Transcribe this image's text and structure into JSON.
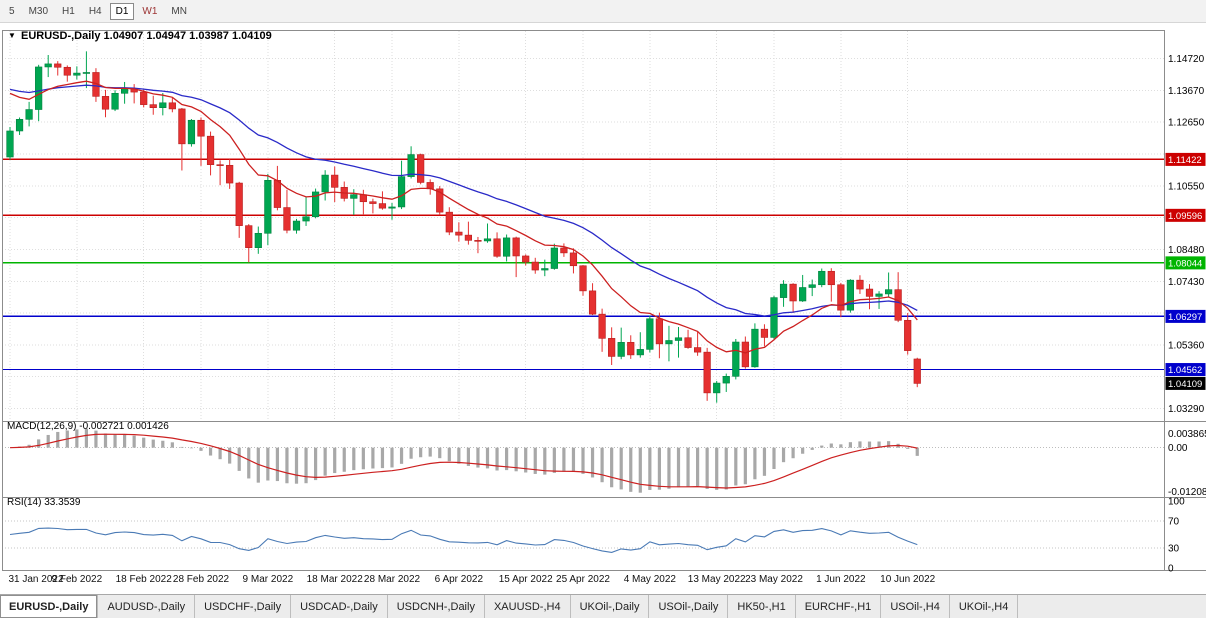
{
  "icons": {
    "chart_dropdown": "▼"
  },
  "toolbar": {
    "timeframes": [
      {
        "label": "5",
        "selected": false,
        "accent": false
      },
      {
        "label": "M30",
        "selected": false,
        "accent": false
      },
      {
        "label": "H1",
        "selected": false,
        "accent": false
      },
      {
        "label": "H4",
        "selected": false,
        "accent": false
      },
      {
        "label": "D1",
        "selected": true,
        "accent": false
      },
      {
        "label": "W1",
        "selected": false,
        "accent": true
      },
      {
        "label": "MN",
        "selected": false,
        "accent": false
      }
    ]
  },
  "chart": {
    "title_text": "EURUSD-,Daily 1.04907 1.04947 1.03987 1.04109",
    "macd_label": "MACD(12,26,9) -0.002721 0.001426",
    "rsi_label": "RSI(14) 33.3539"
  },
  "chart_data": {
    "type": "candlestick",
    "symbol": "EURUSD-",
    "timeframe": "Daily",
    "last_ohlc": {
      "open": 1.04907,
      "high": 1.04947,
      "low": 1.03987,
      "close": 1.04109
    },
    "colors": {
      "up": "#00a651",
      "up_stroke": "#00813e",
      "down": "#e53030",
      "down_stroke": "#b61d1d",
      "grid": "#dedede",
      "border": "#8c8c8c",
      "ma_fast": "#cc2020",
      "ma_slow": "#2a2ac8",
      "hline_red": "#cc0000",
      "hline_green": "#00b400",
      "hline_blue": "#0000cc",
      "tag_black": "#000000",
      "macd_hist": "#a8a8a8",
      "macd_signal": "#cc2020",
      "rsi_line": "#4a7ab5"
    },
    "y_axis_labels": [
      {
        "text": "1.14720",
        "value": 1.1472
      },
      {
        "text": "1.13670",
        "value": 1.1367
      },
      {
        "text": "1.12650",
        "value": 1.1265
      },
      {
        "text": "1.10550",
        "value": 1.1055
      },
      {
        "text": "1.08480",
        "value": 1.0848
      },
      {
        "text": "1.07430",
        "value": 1.0743
      },
      {
        "text": "1.05360",
        "value": 1.0536
      },
      {
        "text": "1.03290",
        "value": 1.0329
      }
    ],
    "y_gridlines": [
      1.1472,
      1.1367,
      1.1265,
      1.116,
      1.1055,
      1.0953,
      1.0848,
      1.0743,
      1.064,
      1.0536,
      1.0433,
      1.0329
    ],
    "x_ticks": [
      {
        "i": 0,
        "label": "31 Jan 2022"
      },
      {
        "i": 7,
        "label": "9 Feb 2022"
      },
      {
        "i": 14,
        "label": "18 Feb 2022"
      },
      {
        "i": 20,
        "label": "28 Feb 2022"
      },
      {
        "i": 27,
        "label": "9 Mar 2022"
      },
      {
        "i": 34,
        "label": "18 Mar 2022"
      },
      {
        "i": 40,
        "label": "28 Mar 2022"
      },
      {
        "i": 47,
        "label": "6 Apr 2022"
      },
      {
        "i": 54,
        "label": "15 Apr 2022"
      },
      {
        "i": 60,
        "label": "25 Apr 2022"
      },
      {
        "i": 67,
        "label": "4 May 2022"
      },
      {
        "i": 74,
        "label": "13 May 2022"
      },
      {
        "i": 80,
        "label": "23 May 2022"
      },
      {
        "i": 87,
        "label": "1 Jun 2022"
      },
      {
        "i": 94,
        "label": "10 Jun 2022"
      }
    ],
    "hlines": [
      {
        "price": 1.11422,
        "label": "1.11422",
        "color": "#cc0000"
      },
      {
        "price": 1.09596,
        "label": "1.09596",
        "color": "#cc0000"
      },
      {
        "price": 1.08044,
        "label": "1.08044",
        "color": "#00b400"
      },
      {
        "price": 1.06297,
        "label": "1.06297",
        "color": "#0000cc"
      },
      {
        "price": 1.04562,
        "label": "1.04562",
        "color": "#0000cc"
      }
    ],
    "current_price_tag": {
      "price": 1.04109,
      "label": "1.04109",
      "color": "#000000"
    },
    "ma": [
      {
        "period": 12,
        "seed": 1.138,
        "color": "#cc2020"
      },
      {
        "period": 30,
        "seed": 1.138,
        "color": "#2a2ac8"
      }
    ],
    "macd": {
      "fast": 12,
      "slow": 26,
      "signal": 9,
      "value_text": "-0.002721 0.001426",
      "axis_labels": [
        {
          "text": "0.003865",
          "value": 0.003865
        },
        {
          "text": "0.00",
          "value": 0
        },
        {
          "text": "-0.01208",
          "value": -0.01208
        }
      ],
      "range": [
        -0.013,
        0.0065
      ]
    },
    "rsi": {
      "period": 14,
      "value_text": "33.3539",
      "axis_labels": [
        {
          "text": "100",
          "value": 100
        },
        {
          "text": "70",
          "value": 70
        },
        {
          "text": "30",
          "value": 30
        },
        {
          "text": "0",
          "value": 0
        }
      ],
      "levels": [
        70,
        30
      ],
      "range": [
        0,
        100
      ]
    },
    "candles": [
      [
        1.115,
        1.1248,
        1.1141,
        1.1235
      ],
      [
        1.1235,
        1.1279,
        1.1222,
        1.1273
      ],
      [
        1.1273,
        1.133,
        1.125,
        1.1305
      ],
      [
        1.1305,
        1.1451,
        1.1267,
        1.1444
      ],
      [
        1.1444,
        1.1483,
        1.1411,
        1.1454
      ],
      [
        1.1454,
        1.1463,
        1.1416,
        1.1443
      ],
      [
        1.1443,
        1.1449,
        1.1396,
        1.1417
      ],
      [
        1.1417,
        1.1446,
        1.1403,
        1.1424
      ],
      [
        1.1424,
        1.1495,
        1.1375,
        1.1426
      ],
      [
        1.1426,
        1.144,
        1.133,
        1.1348
      ],
      [
        1.1348,
        1.1369,
        1.128,
        1.1306
      ],
      [
        1.1306,
        1.1368,
        1.13,
        1.1358
      ],
      [
        1.1358,
        1.1395,
        1.1324,
        1.1374
      ],
      [
        1.1374,
        1.1388,
        1.1325,
        1.1362
      ],
      [
        1.1362,
        1.137,
        1.1312,
        1.1321
      ],
      [
        1.1321,
        1.135,
        1.1288,
        1.1311
      ],
      [
        1.1311,
        1.1359,
        1.1286,
        1.1327
      ],
      [
        1.1327,
        1.1343,
        1.1296,
        1.1307
      ],
      [
        1.1307,
        1.131,
        1.1106,
        1.1193
      ],
      [
        1.1193,
        1.1274,
        1.1184,
        1.127
      ],
      [
        1.127,
        1.1279,
        1.1121,
        1.1218
      ],
      [
        1.1218,
        1.1233,
        1.109,
        1.1125
      ],
      [
        1.1125,
        1.1139,
        1.1058,
        1.1123
      ],
      [
        1.1123,
        1.1143,
        1.1046,
        1.1065
      ],
      [
        1.1065,
        1.1069,
        1.0886,
        1.0926
      ],
      [
        1.0926,
        1.0931,
        1.0806,
        1.0854
      ],
      [
        1.0854,
        1.0923,
        1.0834,
        1.0901
      ],
      [
        1.0901,
        1.1095,
        1.0862,
        1.1074
      ],
      [
        1.1074,
        1.1121,
        1.0976,
        1.0985
      ],
      [
        1.0985,
        1.1043,
        1.0901,
        1.0911
      ],
      [
        1.0911,
        1.0948,
        1.09,
        1.0941
      ],
      [
        1.0941,
        1.102,
        1.0925,
        1.0955
      ],
      [
        1.0955,
        1.1047,
        1.095,
        1.1036
      ],
      [
        1.1036,
        1.1107,
        1.1008,
        1.1091
      ],
      [
        1.1091,
        1.1119,
        1.1003,
        1.1051
      ],
      [
        1.1051,
        1.107,
        1.1005,
        1.1015
      ],
      [
        1.1015,
        1.1045,
        1.0961,
        1.1027
      ],
      [
        1.1027,
        1.1043,
        1.0963,
        1.1004
      ],
      [
        1.1004,
        1.1014,
        1.0966,
        1.0998
      ],
      [
        1.0998,
        1.1038,
        1.0978,
        1.0983
      ],
      [
        1.0983,
        1.1,
        1.0945,
        1.0987
      ],
      [
        1.0987,
        1.1138,
        1.098,
        1.1086
      ],
      [
        1.1086,
        1.1185,
        1.108,
        1.1158
      ],
      [
        1.1158,
        1.1161,
        1.1061,
        1.1067
      ],
      [
        1.1067,
        1.1077,
        1.1027,
        1.1046
      ],
      [
        1.1046,
        1.1055,
        1.096,
        1.097
      ],
      [
        1.097,
        1.0986,
        1.0895,
        1.0905
      ],
      [
        1.0905,
        1.0937,
        1.0874,
        1.0895
      ],
      [
        1.0895,
        1.0939,
        1.0864,
        1.0878
      ],
      [
        1.0878,
        1.0889,
        1.0836,
        1.0876
      ],
      [
        1.0876,
        1.0933,
        1.087,
        1.0883
      ],
      [
        1.0883,
        1.0904,
        1.0821,
        1.0826
      ],
      [
        1.0826,
        1.0897,
        1.0809,
        1.0886
      ],
      [
        1.0886,
        1.089,
        1.0758,
        1.0827
      ],
      [
        1.0827,
        1.0832,
        1.0796,
        1.0807
      ],
      [
        1.0807,
        1.0821,
        1.0769,
        1.0781
      ],
      [
        1.0781,
        1.0815,
        1.0761,
        1.0786
      ],
      [
        1.0786,
        1.0867,
        1.0782,
        1.0853
      ],
      [
        1.0853,
        1.0868,
        1.0824,
        1.0837
      ],
      [
        1.0837,
        1.0852,
        1.077,
        1.0795
      ],
      [
        1.0795,
        1.0797,
        1.0697,
        1.0713
      ],
      [
        1.0713,
        1.0738,
        1.0634,
        1.0637
      ],
      [
        1.0637,
        1.0655,
        1.0514,
        1.0558
      ],
      [
        1.0558,
        1.0594,
        1.0471,
        1.0499
      ],
      [
        1.0499,
        1.0593,
        1.049,
        1.0545
      ],
      [
        1.0545,
        1.0568,
        1.0491,
        1.0504
      ],
      [
        1.0504,
        1.0578,
        1.0495,
        1.0522
      ],
      [
        1.0522,
        1.0632,
        1.0512,
        1.0622
      ],
      [
        1.0622,
        1.0642,
        1.0493,
        1.054
      ],
      [
        1.054,
        1.0599,
        1.0483,
        1.0551
      ],
      [
        1.0551,
        1.0595,
        1.0495,
        1.056
      ],
      [
        1.056,
        1.0586,
        1.0524,
        1.0528
      ],
      [
        1.0528,
        1.0579,
        1.0501,
        1.0513
      ],
      [
        1.0513,
        1.0527,
        1.0354,
        1.038
      ],
      [
        1.038,
        1.0419,
        1.0348,
        1.0412
      ],
      [
        1.0412,
        1.0443,
        1.0383,
        1.0434
      ],
      [
        1.0434,
        1.0556,
        1.0424,
        1.0546
      ],
      [
        1.0546,
        1.0564,
        1.0459,
        1.0465
      ],
      [
        1.0465,
        1.0607,
        1.0462,
        1.0588
      ],
      [
        1.0588,
        1.0604,
        1.0532,
        1.0561
      ],
      [
        1.0561,
        1.0697,
        1.0556,
        1.0691
      ],
      [
        1.0691,
        1.0748,
        1.0661,
        1.0735
      ],
      [
        1.0735,
        1.0738,
        1.0641,
        1.068
      ],
      [
        1.068,
        1.0765,
        1.0677,
        1.0724
      ],
      [
        1.0724,
        1.075,
        1.0696,
        1.0733
      ],
      [
        1.0733,
        1.0786,
        1.0725,
        1.0777
      ],
      [
        1.0777,
        1.0787,
        1.0678,
        1.0733
      ],
      [
        1.0733,
        1.0739,
        1.0627,
        1.065
      ],
      [
        1.065,
        1.0751,
        1.0642,
        1.0748
      ],
      [
        1.0748,
        1.0764,
        1.0703,
        1.0719
      ],
      [
        1.0719,
        1.0735,
        1.0653,
        1.0695
      ],
      [
        1.0695,
        1.0712,
        1.0654,
        1.0703
      ],
      [
        1.0703,
        1.0773,
        1.0692,
        1.0717
      ],
      [
        1.0717,
        1.0774,
        1.0611,
        1.0617
      ],
      [
        1.0617,
        1.0641,
        1.0505,
        1.0518
      ],
      [
        1.04907,
        1.04947,
        1.03987,
        1.04109
      ]
    ]
  },
  "tabs": [
    {
      "label": "EURUSD-,Daily",
      "active": true
    },
    {
      "label": "AUDUSD-,Daily",
      "active": false
    },
    {
      "label": "USDCHF-,Daily",
      "active": false
    },
    {
      "label": "USDCAD-,Daily",
      "active": false
    },
    {
      "label": "USDCNH-,Daily",
      "active": false
    },
    {
      "label": "XAUUSD-,H4",
      "active": false
    },
    {
      "label": "UKOil-,Daily",
      "active": false
    },
    {
      "label": "USOil-,Daily",
      "active": false
    },
    {
      "label": "HK50-,H1",
      "active": false
    },
    {
      "label": "EURCHF-,H1",
      "active": false
    },
    {
      "label": "USOil-,H4",
      "active": false
    },
    {
      "label": "UKOil-,H4",
      "active": false
    }
  ]
}
